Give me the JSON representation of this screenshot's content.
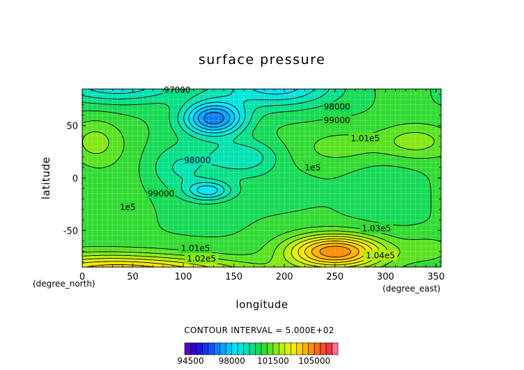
{
  "chart_data": {
    "type": "heatmap",
    "subtype": "filled contour map",
    "title": "surface pressure",
    "xlabel": "longitude",
    "ylabel": "latitude",
    "x_unit": "(degree_east)",
    "y_unit": "(degree_north)",
    "xlim": [
      0,
      355
    ],
    "ylim": [
      -85,
      85
    ],
    "x_ticks": [
      0,
      50,
      100,
      150,
      200,
      250,
      300,
      350
    ],
    "y_ticks": [
      -50,
      0,
      50
    ],
    "grid": true,
    "contour_interval_text": "CONTOUR INTERVAL = 5.000E+02",
    "contour_labels": [
      {
        "text": "97000",
        "lon": 94,
        "lat": 84
      },
      {
        "text": "98000",
        "lon": 252,
        "lat": 68
      },
      {
        "text": "99000",
        "lon": 252,
        "lat": 55
      },
      {
        "text": "1.01e5",
        "lon": 280,
        "lat": 38
      },
      {
        "text": "98000",
        "lon": 114,
        "lat": 17
      },
      {
        "text": "1e5",
        "lon": 228,
        "lat": 10
      },
      {
        "text": "99000",
        "lon": 78,
        "lat": -15
      },
      {
        "text": "1e5",
        "lon": 45,
        "lat": -28
      },
      {
        "text": "1.03e5",
        "lon": 291,
        "lat": -48
      },
      {
        "text": "1.01e5",
        "lon": 112,
        "lat": -67
      },
      {
        "text": "1.04e5",
        "lon": 295,
        "lat": -74
      },
      {
        "text": "1.02e5",
        "lon": 118,
        "lat": -77
      }
    ],
    "colorbar": {
      "min": 94000,
      "max": 107000,
      "step": 500,
      "tick_labels": [
        "94500",
        "98000",
        "101500",
        "105000"
      ],
      "tick_values": [
        94500,
        98000,
        101500,
        105000
      ]
    },
    "field_features": [
      {
        "kind": "low",
        "lon": 128,
        "lat": 55,
        "value": 96000
      },
      {
        "kind": "low",
        "lon": 185,
        "lat": 82,
        "value": 96800
      },
      {
        "kind": "low",
        "lon": 122,
        "lat": -12,
        "value": 98000
      },
      {
        "kind": "high",
        "lon": 328,
        "lat": 35,
        "value": 101800
      },
      {
        "kind": "high",
        "lon": 15,
        "lat": 32,
        "value": 101600
      },
      {
        "kind": "high",
        "lon": 250,
        "lat": -70,
        "value": 105200
      },
      {
        "kind": "high",
        "lon": 25,
        "lat": -80,
        "value": 102500
      }
    ],
    "background_value": 100500
  }
}
